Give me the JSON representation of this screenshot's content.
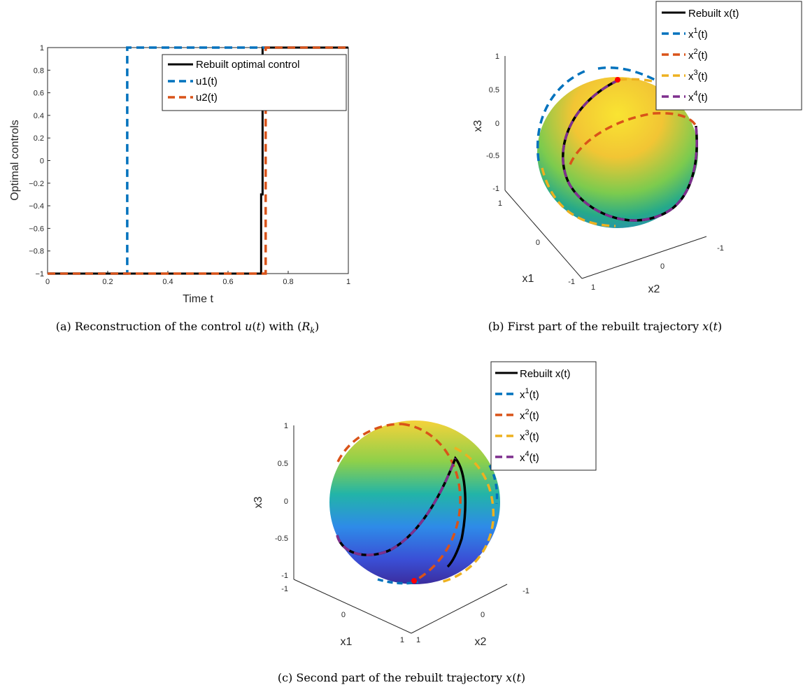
{
  "colors": {
    "rebuilt": "#000000",
    "blue": "#0072BD",
    "orange": "#D95319",
    "yellow": "#EDB120",
    "purple": "#7E2F8E",
    "marker": "#FF0000"
  },
  "chart_data": [
    {
      "id": "a",
      "type": "line",
      "caption": "(a) Reconstruction of the control u(t) with (R_k)",
      "xlabel": "Time t",
      "ylabel": "Optimal controls",
      "xlim": [
        0,
        1
      ],
      "ylim": [
        -1,
        1
      ],
      "xticks": [
        "0",
        "0.2",
        "0.4",
        "0.6",
        "0.8",
        "1"
      ],
      "yticks": [
        "-1",
        "-0.8",
        "-0.6",
        "-0.4",
        "-0.2",
        "0",
        "0.2",
        "0.4",
        "0.6",
        "0.8",
        "1"
      ],
      "legend_position": "top-right",
      "series": [
        {
          "name": "Rebuilt optimal control",
          "style": "solid",
          "color": "#000000",
          "x": [
            0,
            0.71,
            0.71,
            0.715,
            0.715,
            1
          ],
          "y": [
            -1,
            -1,
            -0.3,
            -0.3,
            1,
            1
          ]
        },
        {
          "name": "u1(t)",
          "style": "dashed",
          "color": "#0072BD",
          "x": [
            0,
            0.265,
            0.265,
            1
          ],
          "y": [
            -1,
            -1,
            1,
            1
          ]
        },
        {
          "name": "u2(t)",
          "style": "dashed",
          "color": "#D95319",
          "x": [
            0,
            0.725,
            0.725,
            1
          ],
          "y": [
            -1,
            -1,
            1,
            1
          ]
        }
      ]
    },
    {
      "id": "b",
      "type": "line",
      "subtype": "3d-sphere-trajectory",
      "caption": "(b) First part of the rebuilt trajectory x(t)",
      "xlabel": "x1",
      "ylabel": "x2",
      "zlabel": "x3",
      "zticks": [
        "1",
        "0.5",
        "0",
        "-0.5",
        "-1"
      ],
      "x1ticks": [
        "1",
        "0",
        "-1"
      ],
      "x2ticks": [
        "1",
        "0",
        "-1"
      ],
      "legend_position": "top-right",
      "series": [
        {
          "name": "Rebuilt x(t)",
          "color": "#000000"
        },
        {
          "name": "x",
          "sup": "1",
          "suffix": "(t)",
          "color": "#0072BD"
        },
        {
          "name": "x",
          "sup": "2",
          "suffix": "(t)",
          "color": "#D95319"
        },
        {
          "name": "x",
          "sup": "3",
          "suffix": "(t)",
          "color": "#EDB120"
        },
        {
          "name": "x",
          "sup": "4",
          "suffix": "(t)",
          "color": "#7E2F8E"
        }
      ]
    },
    {
      "id": "c",
      "type": "line",
      "subtype": "3d-sphere-trajectory",
      "caption": "(c) Second part of the rebuilt trajectory x(t)",
      "xlabel": "x1",
      "ylabel": "x2",
      "zlabel": "x3",
      "zticks": [
        "1",
        "0.5",
        "0",
        "-0.5",
        "-1"
      ],
      "x1ticks": [
        "-1",
        "0",
        "1"
      ],
      "x2ticks": [
        "1",
        "0",
        "-1"
      ],
      "legend_position": "top-right",
      "series": [
        {
          "name": "Rebuilt x(t)",
          "color": "#000000"
        },
        {
          "name": "x",
          "sup": "1",
          "suffix": "(t)",
          "color": "#0072BD"
        },
        {
          "name": "x",
          "sup": "2",
          "suffix": "(t)",
          "color": "#D95319"
        },
        {
          "name": "x",
          "sup": "3",
          "suffix": "(t)",
          "color": "#EDB120"
        },
        {
          "name": "x",
          "sup": "4",
          "suffix": "(t)",
          "color": "#7E2F8E"
        }
      ]
    }
  ]
}
